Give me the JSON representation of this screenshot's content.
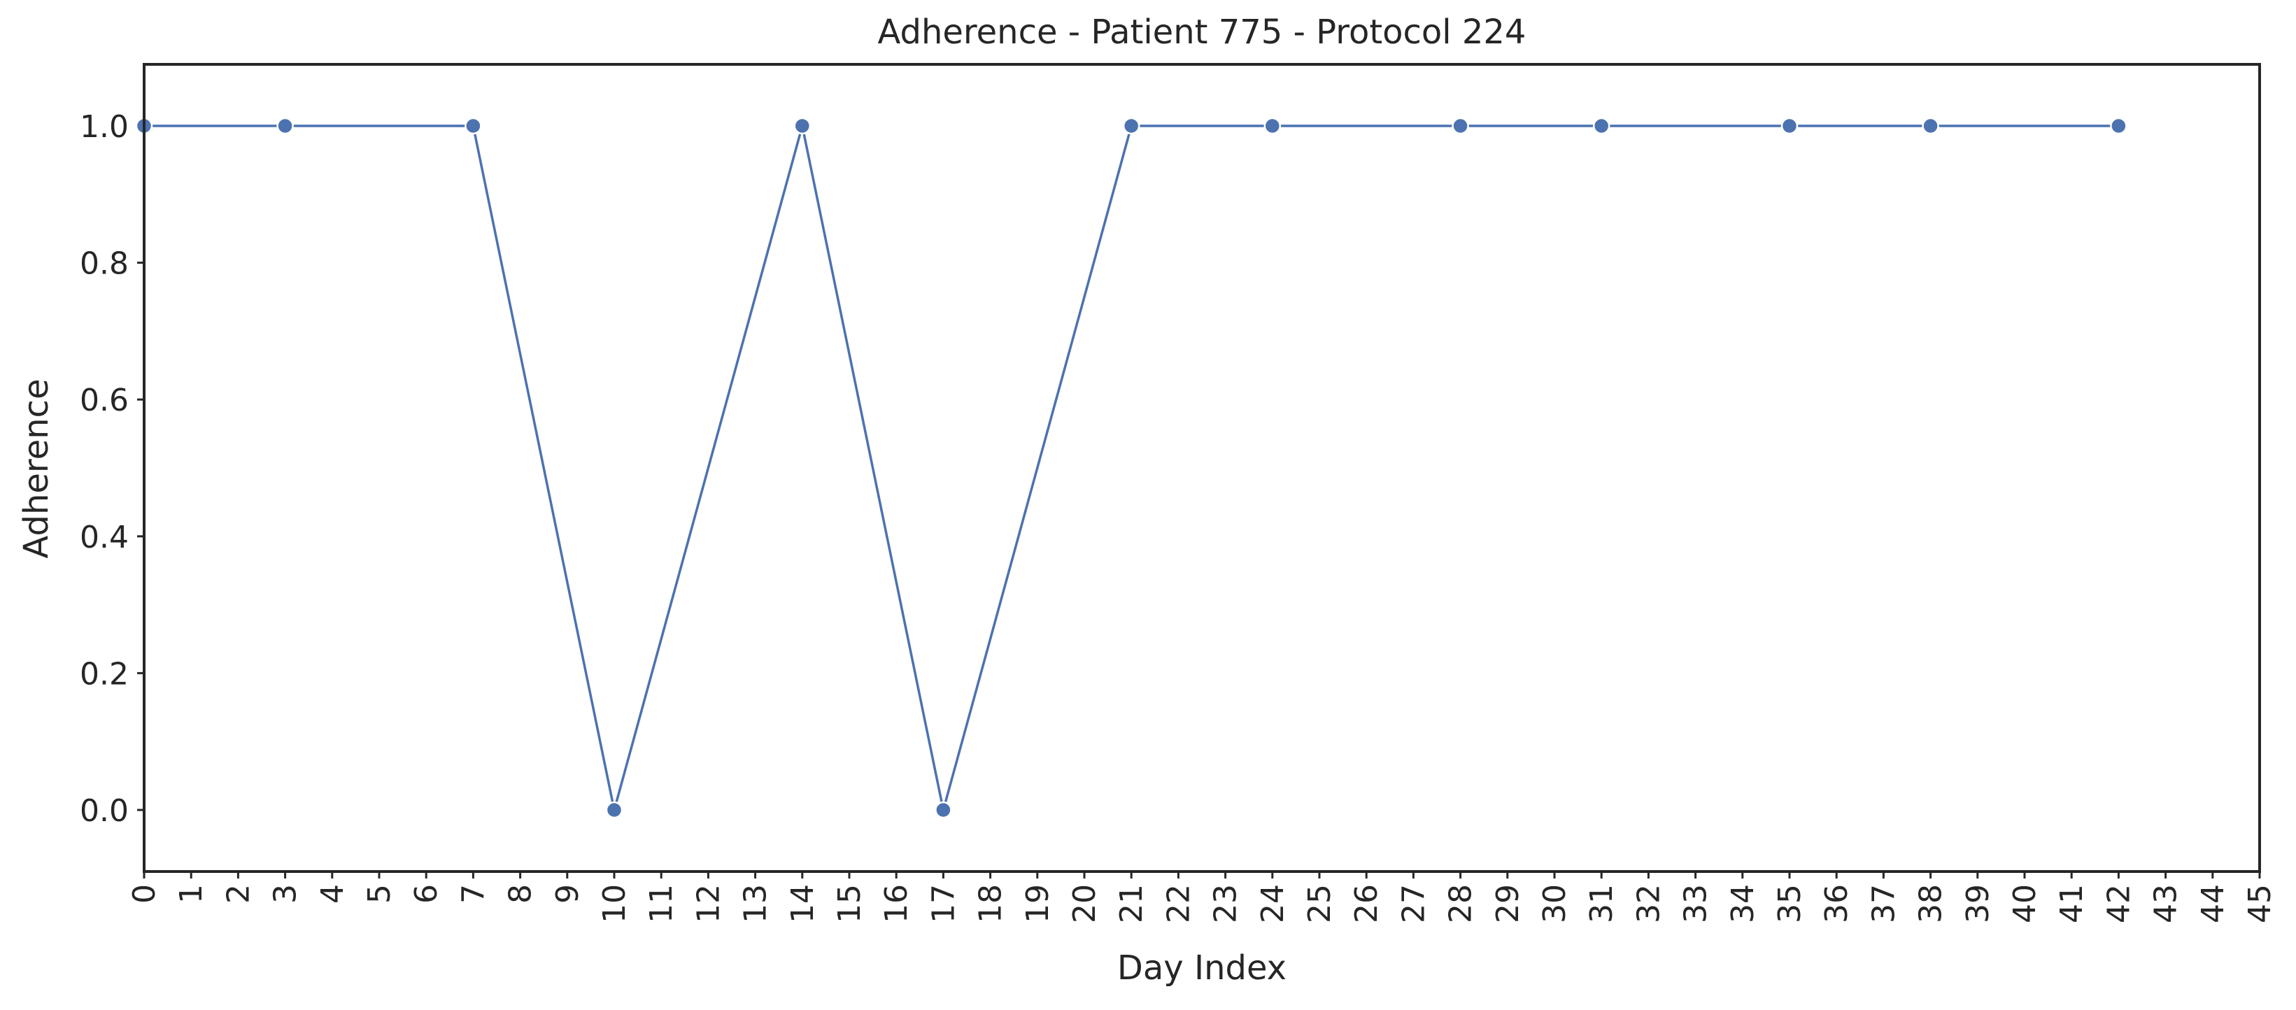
{
  "chart_data": {
    "type": "line",
    "title": "Adherence - Patient 775 - Protocol 224",
    "xlabel": "Day Index",
    "ylabel": "Adherence",
    "x_ticks": [
      0,
      1,
      2,
      3,
      4,
      5,
      6,
      7,
      8,
      9,
      10,
      11,
      12,
      13,
      14,
      15,
      16,
      17,
      18,
      19,
      20,
      21,
      22,
      23,
      24,
      25,
      26,
      27,
      28,
      29,
      30,
      31,
      32,
      33,
      34,
      35,
      36,
      37,
      38,
      39,
      40,
      41,
      42,
      43,
      44,
      45
    ],
    "y_ticks": [
      "0.0",
      "0.2",
      "0.4",
      "0.6",
      "0.8",
      "1.0"
    ],
    "xlim": [
      0,
      45
    ],
    "ylim": [
      -0.09,
      1.09
    ],
    "grid": false,
    "series": [
      {
        "x": [
          0,
          3,
          7,
          10,
          14,
          17,
          21,
          24,
          28,
          31,
          35,
          38,
          42
        ],
        "y": [
          1,
          1,
          1,
          0,
          1,
          0,
          1,
          1,
          1,
          1,
          1,
          1,
          1
        ],
        "color": "#4c72b0"
      }
    ]
  }
}
